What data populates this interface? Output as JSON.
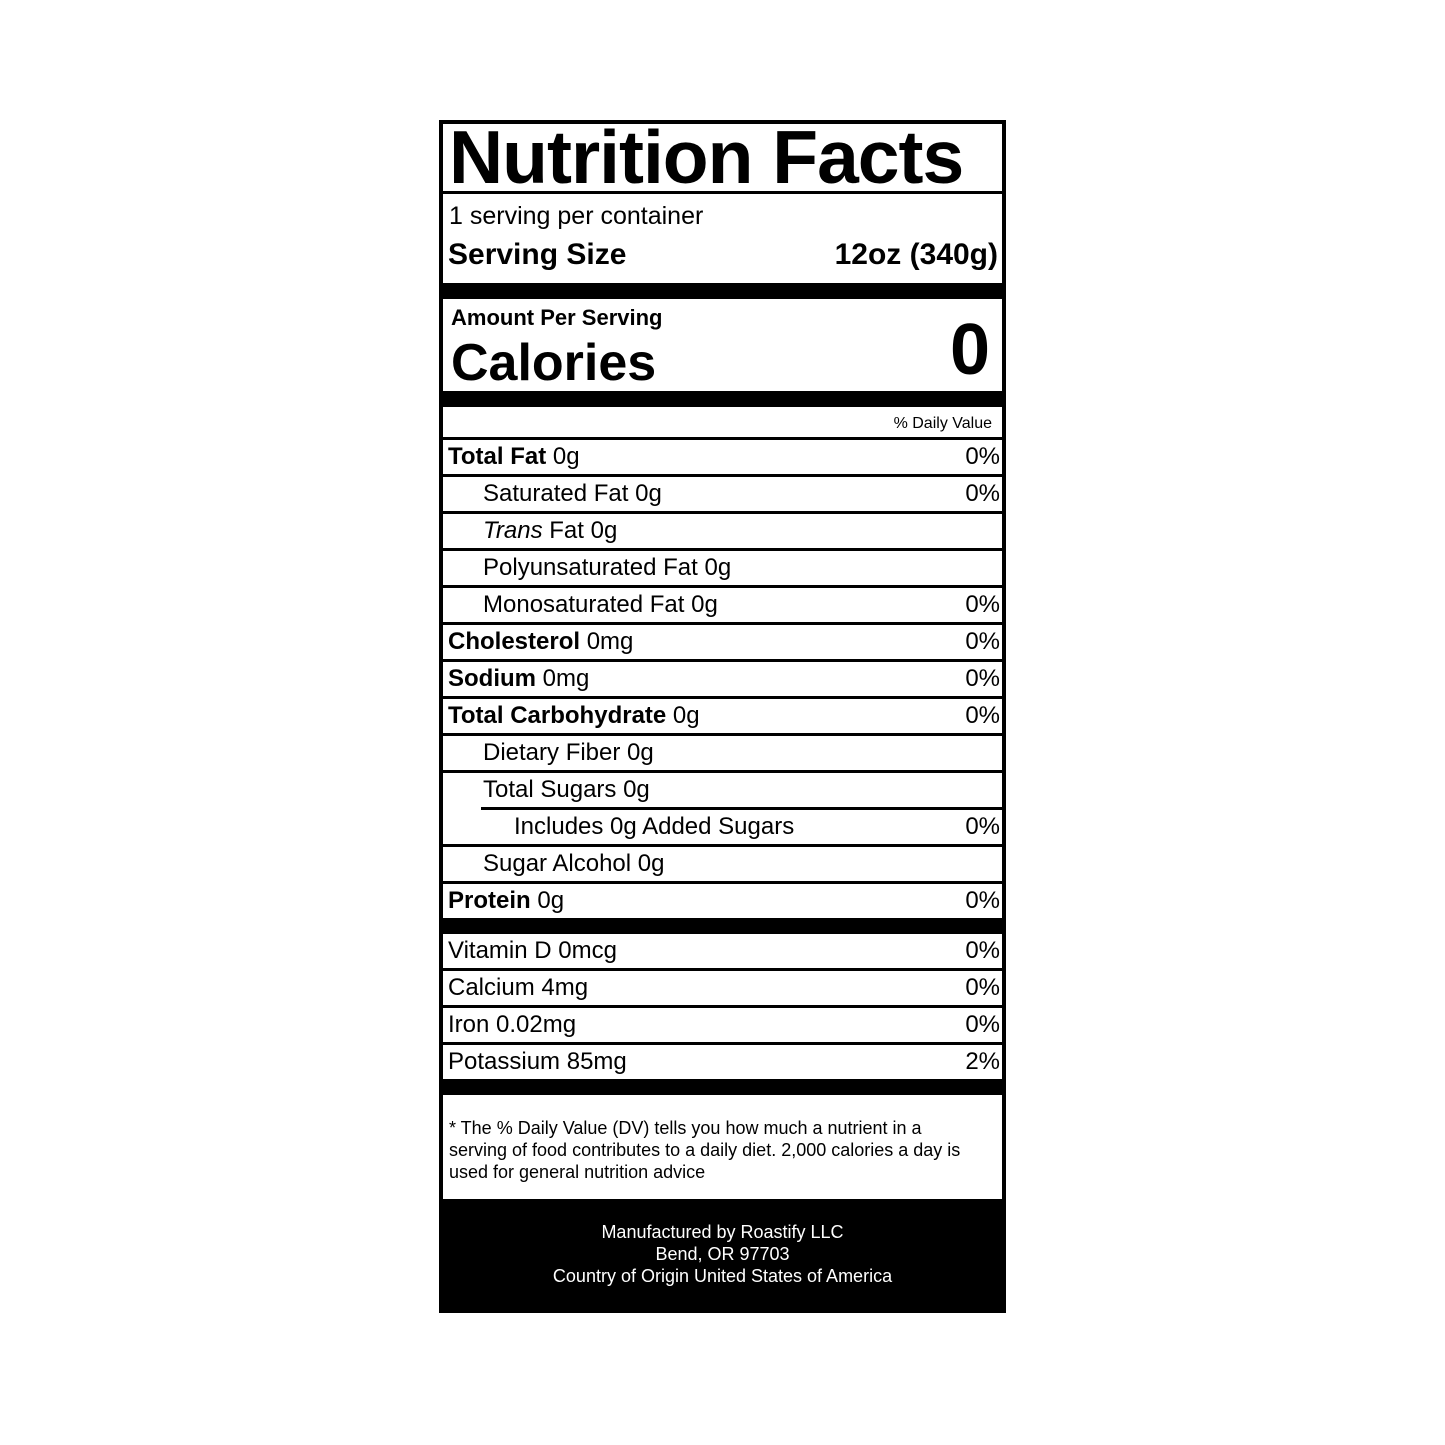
{
  "title": "Nutrition Facts",
  "servings_per_container": "1 serving per container",
  "serving_size": {
    "label": "Serving Size",
    "value": "12oz (340g)"
  },
  "amount_per_serving": "Amount Per Serving",
  "calories": {
    "label": "Calories",
    "value": "0"
  },
  "daily_value_header": "% Daily Value",
  "nutrients": [
    {
      "name": "Total Fat",
      "amount": "0g",
      "dv": "0%"
    },
    {
      "name": "Saturated Fat",
      "amount": "0g",
      "dv": "0%"
    },
    {
      "name": "Trans",
      "name_suffix": "Fat",
      "amount": "0g",
      "dv": ""
    },
    {
      "name": "Polyunsaturated Fat",
      "amount": "0g",
      "dv": ""
    },
    {
      "name": "Monosaturated Fat",
      "amount": "0g",
      "dv": "0%"
    },
    {
      "name": "Cholesterol",
      "amount": "0mg",
      "dv": "0%"
    },
    {
      "name": "Sodium",
      "amount": "0mg",
      "dv": "0%"
    },
    {
      "name": "Total Carbohydrate",
      "amount": "0g",
      "dv": "0%"
    },
    {
      "name": "Dietary Fiber",
      "amount": "0g",
      "dv": ""
    },
    {
      "name": "Total Sugars",
      "amount": "0g",
      "dv": ""
    },
    {
      "name": "Includes 0g Added Sugars",
      "amount": "",
      "dv": "0%"
    },
    {
      "name": "Sugar Alcohol",
      "amount": "0g",
      "dv": ""
    },
    {
      "name": "Protein",
      "amount": "0g",
      "dv": "0%"
    }
  ],
  "vitamins": [
    {
      "name": "Vitamin D",
      "amount": "0mcg",
      "dv": "0%"
    },
    {
      "name": "Calcium",
      "amount": "4mg",
      "dv": "0%"
    },
    {
      "name": "Iron",
      "amount": "0.02mg",
      "dv": "0%"
    },
    {
      "name": "Potassium",
      "amount": "85mg",
      "dv": "2%"
    }
  ],
  "footnote": "* The % Daily Value (DV) tells you how much a nutrient in a serving of food contributes to a daily diet. 2,000 calories a day is used for general nutrition advice",
  "manufacturer": {
    "line1": "Manufactured by Roastify LLC",
    "line2": "Bend, OR 97703",
    "line3": "Country of Origin United States of America"
  }
}
